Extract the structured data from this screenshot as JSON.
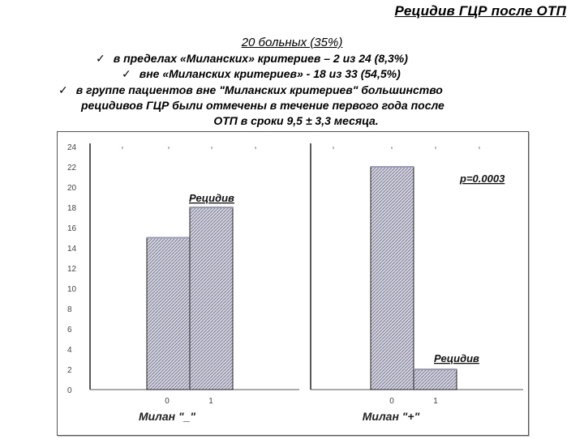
{
  "slide": {
    "title": "Рецидив ГЦР после ОТП",
    "subtitle": "20 больных (35%)",
    "check_glyph": "✓",
    "bullets": [
      "в пределах «Миланских» критериев – 2 из 24 (8,3%)",
      "вне «Миланских критериев» - 18 из 33 (54,5%)",
      "в группе пациентов вне \"Миланских критериев\" большинство",
      "рецидивов ГЦР были отмечены в течение первого года после",
      "ОТП в сроки 9,5 ± 3,3 месяца."
    ]
  },
  "chart_data": {
    "type": "bar",
    "ylim": [
      0,
      24
    ],
    "y_ticks": [
      "0",
      "2",
      "4",
      "6",
      "8",
      "10",
      "12",
      "14",
      "16",
      "18",
      "20",
      "22",
      "24"
    ],
    "panels": [
      {
        "xlabel": "Милан \"_\"",
        "categories": [
          "0",
          "1"
        ],
        "values": [
          15,
          18
        ],
        "annotation": "Рецидив"
      },
      {
        "xlabel": "Милан \"+\"",
        "categories": [
          "0",
          "1"
        ],
        "values": [
          22,
          2
        ],
        "annotation": "Рецидив",
        "p_value": "р=0.0003"
      }
    ],
    "bar_fill": "#d4d4e0",
    "bar_stroke": "#222222",
    "grid": false
  }
}
